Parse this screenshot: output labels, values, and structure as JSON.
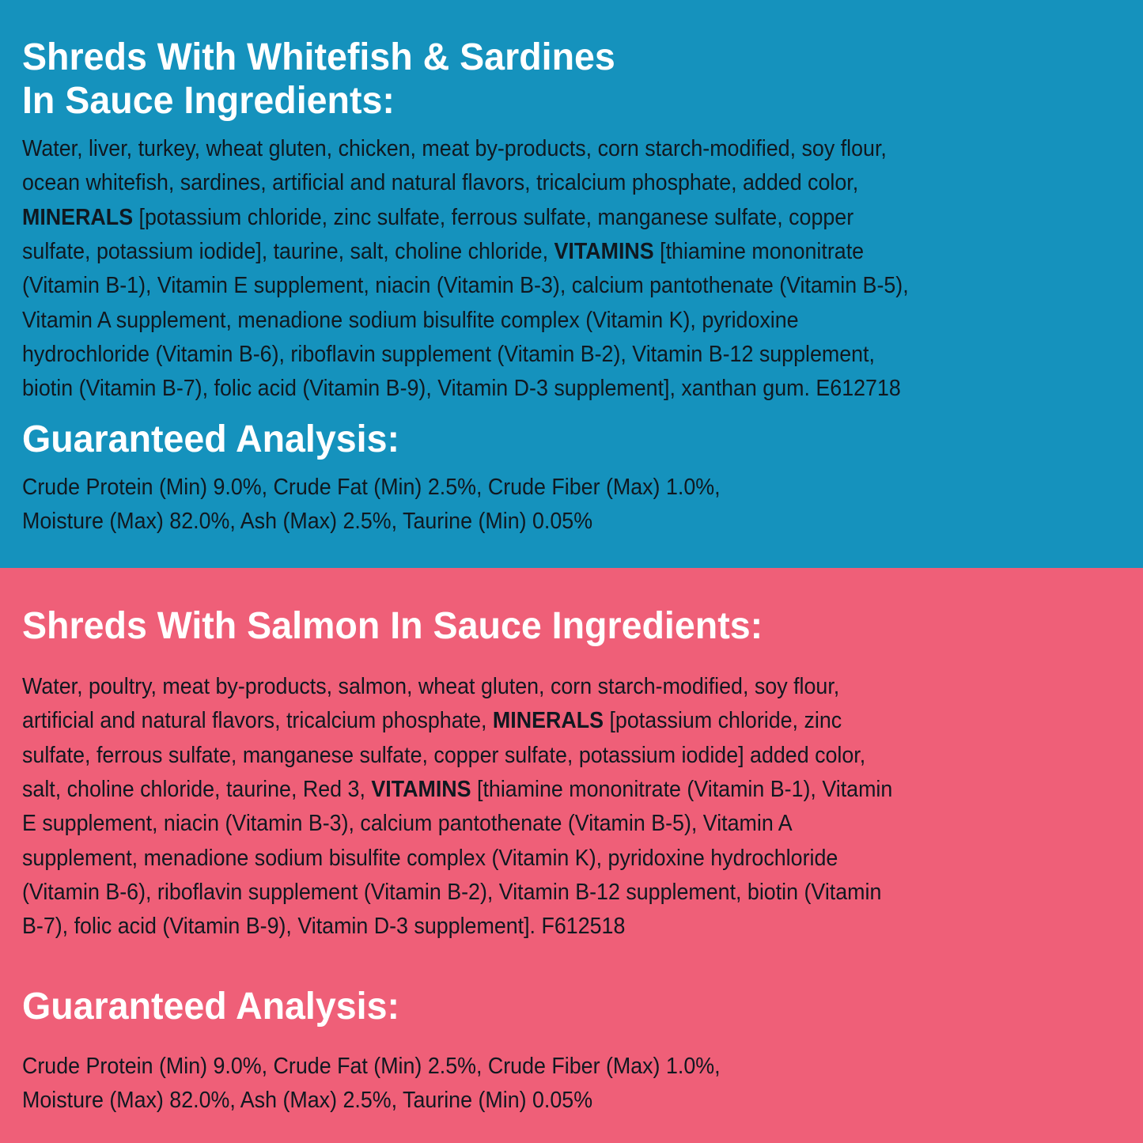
{
  "colors": {
    "top_panel": "#1592bd",
    "bottom_panel": "#ef5f78",
    "heading": "#ffffff",
    "body": "#101820"
  },
  "sections": [
    {
      "title_lines": [
        "Shreds With Whitefish & Sardines",
        "In Sauce Ingredients:"
      ],
      "ingredients": [
        [
          {
            "t": "Water, liver, turkey, wheat gluten, chicken, meat by-products, corn starch-modified, soy flour,"
          }
        ],
        [
          {
            "t": "ocean whitefish, sardines, artificial and natural flavors, tricalcium phosphate, added color,"
          }
        ],
        [
          {
            "t": "MINERALS",
            "b": true
          },
          {
            "t": " [potassium chloride, zinc sulfate, ferrous sulfate, manganese sulfate, copper"
          }
        ],
        [
          {
            "t": "sulfate, potassium iodide], taurine, salt, choline chloride, "
          },
          {
            "t": "VITAMINS",
            "b": true
          },
          {
            "t": " [thiamine mononitrate"
          }
        ],
        [
          {
            "t": "(Vitamin B-1), Vitamin E supplement, niacin (Vitamin B-3), calcium pantothenate (Vitamin B-5),"
          }
        ],
        [
          {
            "t": "Vitamin A supplement, menadione sodium bisulfite complex (Vitamin K), pyridoxine"
          }
        ],
        [
          {
            "t": "hydrochloride (Vitamin B-6), riboflavin supplement (Vitamin B-2), Vitamin B-12 supplement,"
          }
        ],
        [
          {
            "t": "biotin (Vitamin B-7), folic acid (Vitamin B-9), Vitamin D-3 supplement], xanthan gum. E612718"
          }
        ]
      ],
      "analysis_title": "Guaranteed Analysis:",
      "analysis": [
        [
          {
            "t": "Crude Protein (Min) 9.0%, Crude Fat (Min) 2.5%, Crude Fiber (Max) 1.0%,"
          }
        ],
        [
          {
            "t": "Moisture (Max) 82.0%, Ash (Max)   2.5%, Taurine (Min)  0.05%"
          }
        ]
      ]
    },
    {
      "title_lines": [
        "Shreds With Salmon In Sauce Ingredients:"
      ],
      "ingredients": [
        [
          {
            "t": "Water, poultry, meat by-products, salmon, wheat gluten, corn starch-modified, soy flour,"
          }
        ],
        [
          {
            "t": "artificial and natural flavors, tricalcium phosphate, "
          },
          {
            "t": "MINERALS",
            "b": true
          },
          {
            "t": " [potassium chloride, zinc"
          }
        ],
        [
          {
            "t": "sulfate, ferrous sulfate, manganese sulfate, copper sulfate, potassium iodide] added color,"
          }
        ],
        [
          {
            "t": "salt, choline chloride, taurine, Red 3, "
          },
          {
            "t": "VITAMINS",
            "b": true
          },
          {
            "t": " [thiamine mononitrate (Vitamin B-1), Vitamin"
          }
        ],
        [
          {
            "t": "E supplement, niacin (Vitamin B-3), calcium pantothenate (Vitamin B-5), Vitamin A"
          }
        ],
        [
          {
            "t": "supplement, menadione sodium bisulfite complex (Vitamin K), pyridoxine hydrochloride"
          }
        ],
        [
          {
            "t": "(Vitamin B-6), riboflavin supplement (Vitamin B-2), Vitamin B-12 supplement, biotin (Vitamin"
          }
        ],
        [
          {
            "t": "B-7), folic acid (Vitamin B-9), Vitamin D-3 supplement]. F612518"
          }
        ]
      ],
      "analysis_title": "Guaranteed Analysis:",
      "analysis": [
        [
          {
            "t": "Crude Protein (Min) 9.0%, Crude Fat (Min) 2.5%, Crude Fiber (Max) 1.0%,"
          }
        ],
        [
          {
            "t": "Moisture (Max) 82.0%, Ash (Max)   2.5%, Taurine (Min)  0.05%"
          }
        ]
      ]
    }
  ]
}
